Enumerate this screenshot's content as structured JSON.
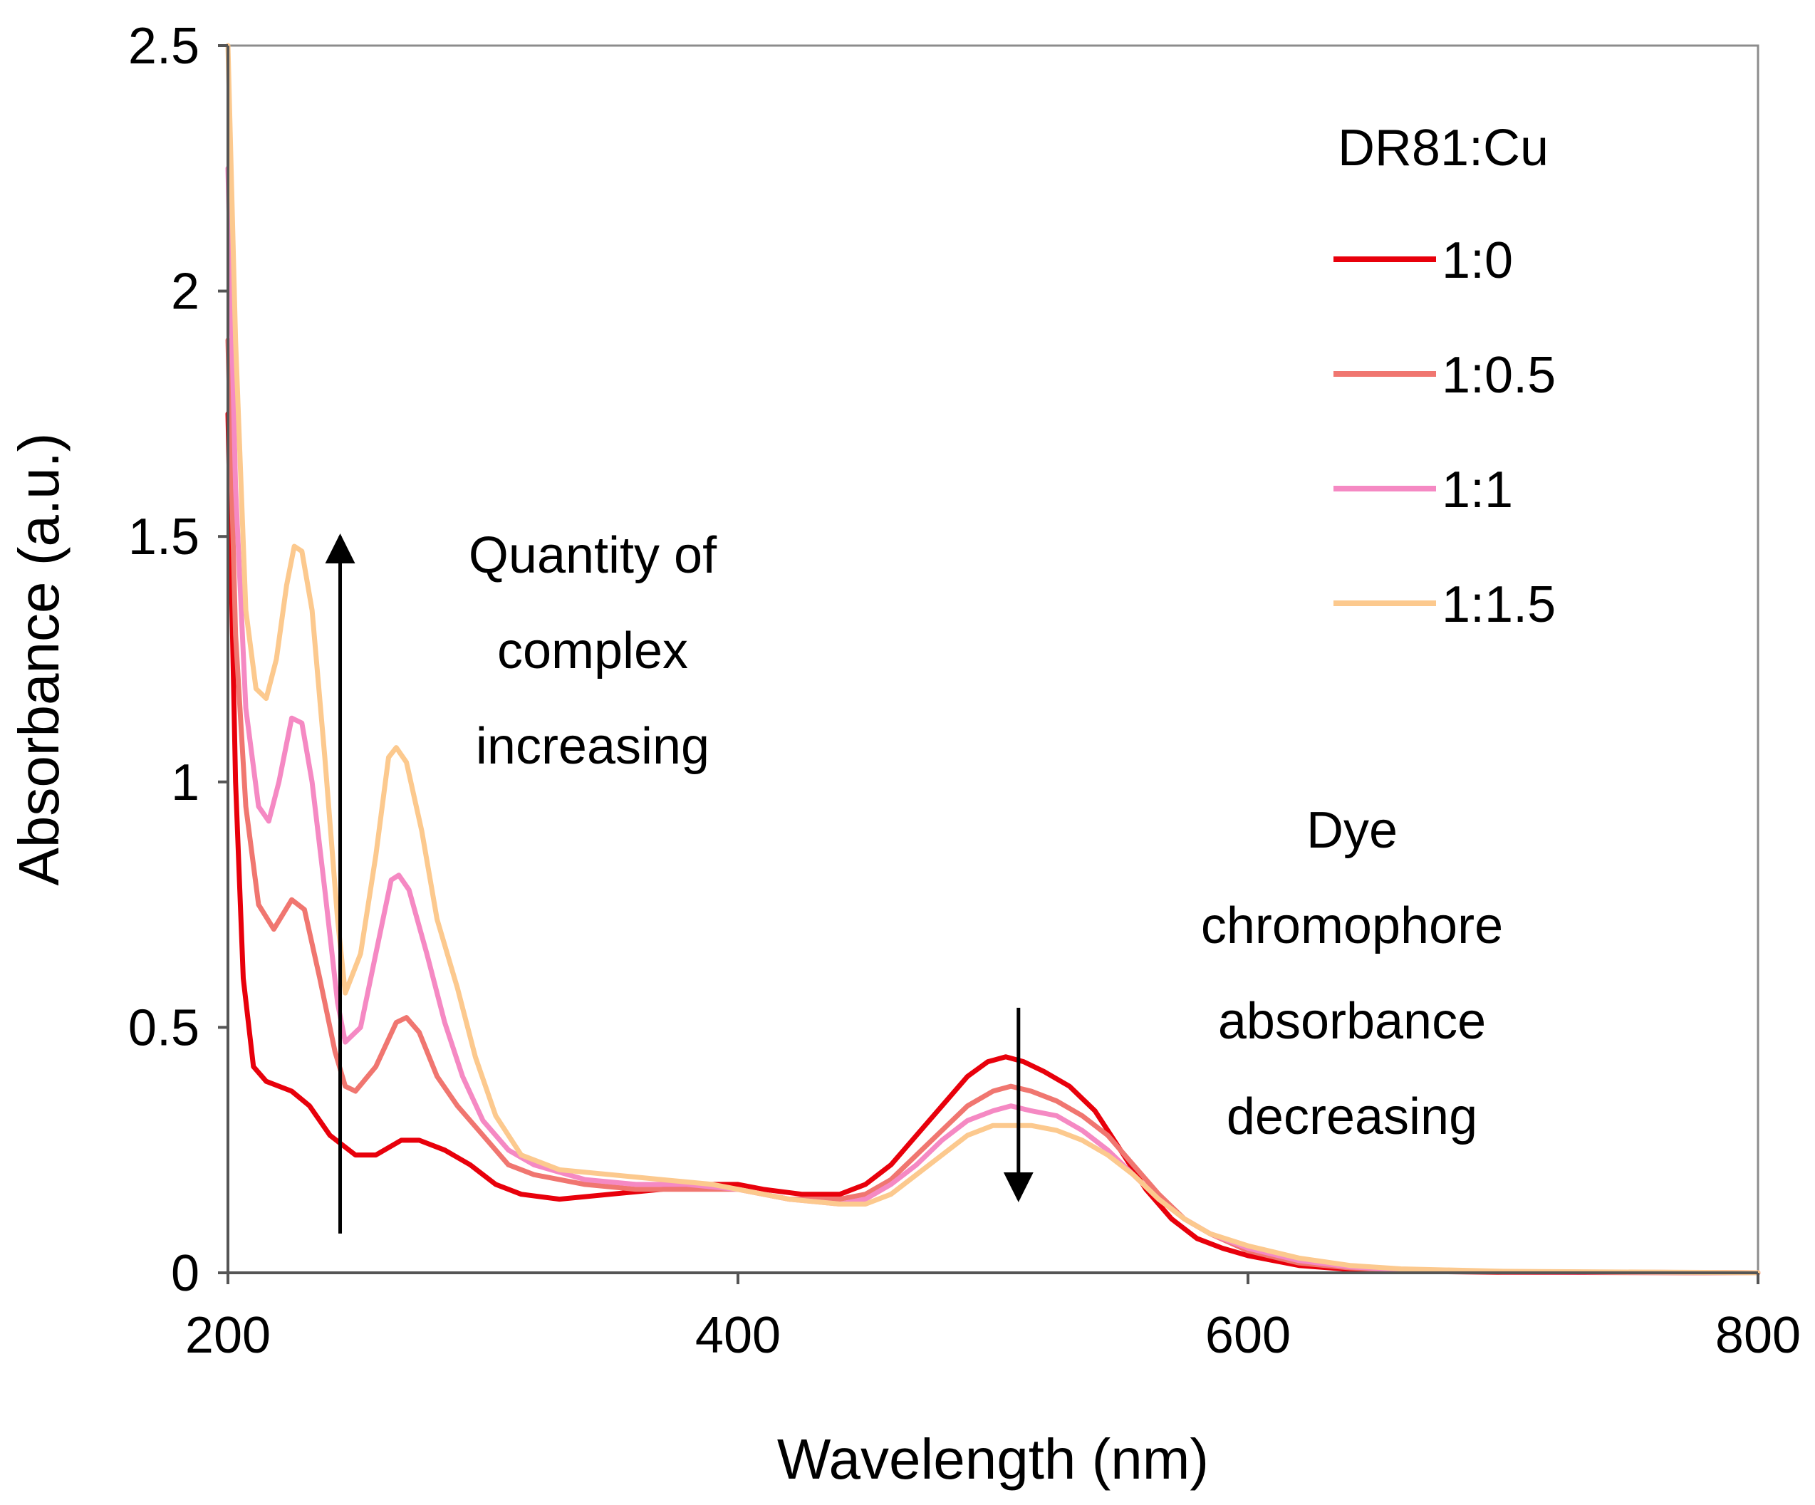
{
  "chart_data": {
    "type": "line",
    "title": "",
    "xlabel": "Wavelength (nm)",
    "ylabel": "Absorbance (a.u.)",
    "xlim": [
      200,
      800
    ],
    "ylim": [
      0,
      2.5
    ],
    "xticks": [
      "200",
      "400",
      "600",
      "800"
    ],
    "yticks": [
      "0",
      "0.5",
      "1",
      "1.5",
      "2",
      "2.5"
    ],
    "legend_title": "DR81:Cu",
    "legend_position": "top-right",
    "series": [
      {
        "name": "1:0",
        "color": "#e8000b",
        "points": [
          [
            200,
            1.75
          ],
          [
            203,
            1.0
          ],
          [
            206,
            0.6
          ],
          [
            210,
            0.42
          ],
          [
            215,
            0.39
          ],
          [
            225,
            0.37
          ],
          [
            232,
            0.34
          ],
          [
            240,
            0.28
          ],
          [
            250,
            0.24
          ],
          [
            258,
            0.24
          ],
          [
            268,
            0.27
          ],
          [
            275,
            0.27
          ],
          [
            285,
            0.25
          ],
          [
            295,
            0.22
          ],
          [
            305,
            0.18
          ],
          [
            315,
            0.16
          ],
          [
            330,
            0.15
          ],
          [
            350,
            0.16
          ],
          [
            370,
            0.17
          ],
          [
            390,
            0.18
          ],
          [
            400,
            0.18
          ],
          [
            410,
            0.17
          ],
          [
            425,
            0.16
          ],
          [
            440,
            0.16
          ],
          [
            450,
            0.18
          ],
          [
            460,
            0.22
          ],
          [
            470,
            0.28
          ],
          [
            480,
            0.34
          ],
          [
            490,
            0.4
          ],
          [
            498,
            0.43
          ],
          [
            505,
            0.44
          ],
          [
            512,
            0.43
          ],
          [
            520,
            0.41
          ],
          [
            530,
            0.38
          ],
          [
            540,
            0.33
          ],
          [
            550,
            0.25
          ],
          [
            560,
            0.17
          ],
          [
            570,
            0.11
          ],
          [
            580,
            0.07
          ],
          [
            590,
            0.05
          ],
          [
            600,
            0.035
          ],
          [
            620,
            0.015
          ],
          [
            640,
            0.007
          ],
          [
            660,
            0.003
          ],
          [
            700,
            0.001
          ],
          [
            800,
            0.0
          ]
        ]
      },
      {
        "name": "1:0.5",
        "color": "#f07670",
        "points": [
          [
            200,
            1.9
          ],
          [
            203,
            1.3
          ],
          [
            207,
            0.95
          ],
          [
            212,
            0.75
          ],
          [
            218,
            0.7
          ],
          [
            225,
            0.76
          ],
          [
            230,
            0.74
          ],
          [
            236,
            0.6
          ],
          [
            242,
            0.45
          ],
          [
            246,
            0.38
          ],
          [
            250,
            0.37
          ],
          [
            258,
            0.42
          ],
          [
            266,
            0.51
          ],
          [
            270,
            0.52
          ],
          [
            275,
            0.49
          ],
          [
            282,
            0.4
          ],
          [
            290,
            0.34
          ],
          [
            300,
            0.28
          ],
          [
            310,
            0.22
          ],
          [
            320,
            0.2
          ],
          [
            340,
            0.18
          ],
          [
            360,
            0.17
          ],
          [
            380,
            0.17
          ],
          [
            400,
            0.17
          ],
          [
            420,
            0.15
          ],
          [
            440,
            0.15
          ],
          [
            450,
            0.16
          ],
          [
            460,
            0.19
          ],
          [
            470,
            0.24
          ],
          [
            480,
            0.29
          ],
          [
            490,
            0.34
          ],
          [
            500,
            0.37
          ],
          [
            507,
            0.38
          ],
          [
            515,
            0.37
          ],
          [
            525,
            0.35
          ],
          [
            535,
            0.32
          ],
          [
            545,
            0.28
          ],
          [
            555,
            0.22
          ],
          [
            565,
            0.16
          ],
          [
            575,
            0.11
          ],
          [
            585,
            0.08
          ],
          [
            600,
            0.045
          ],
          [
            620,
            0.02
          ],
          [
            640,
            0.01
          ],
          [
            660,
            0.005
          ],
          [
            700,
            0.002
          ],
          [
            800,
            0.0
          ]
        ]
      },
      {
        "name": "1:1",
        "color": "#f589c3",
        "points": [
          [
            200,
            2.25
          ],
          [
            203,
            1.6
          ],
          [
            207,
            1.15
          ],
          [
            212,
            0.95
          ],
          [
            216,
            0.92
          ],
          [
            220,
            1.0
          ],
          [
            225,
            1.13
          ],
          [
            229,
            1.12
          ],
          [
            233,
            1.0
          ],
          [
            238,
            0.78
          ],
          [
            243,
            0.55
          ],
          [
            246,
            0.47
          ],
          [
            252,
            0.5
          ],
          [
            258,
            0.65
          ],
          [
            264,
            0.8
          ],
          [
            267,
            0.81
          ],
          [
            271,
            0.78
          ],
          [
            278,
            0.65
          ],
          [
            285,
            0.51
          ],
          [
            292,
            0.4
          ],
          [
            300,
            0.31
          ],
          [
            310,
            0.25
          ],
          [
            320,
            0.22
          ],
          [
            340,
            0.19
          ],
          [
            360,
            0.18
          ],
          [
            380,
            0.18
          ],
          [
            400,
            0.17
          ],
          [
            420,
            0.15
          ],
          [
            440,
            0.14
          ],
          [
            450,
            0.15
          ],
          [
            460,
            0.18
          ],
          [
            470,
            0.22
          ],
          [
            480,
            0.27
          ],
          [
            490,
            0.31
          ],
          [
            500,
            0.33
          ],
          [
            507,
            0.34
          ],
          [
            515,
            0.33
          ],
          [
            525,
            0.32
          ],
          [
            535,
            0.29
          ],
          [
            545,
            0.25
          ],
          [
            555,
            0.2
          ],
          [
            565,
            0.15
          ],
          [
            575,
            0.11
          ],
          [
            585,
            0.08
          ],
          [
            600,
            0.05
          ],
          [
            620,
            0.025
          ],
          [
            640,
            0.012
          ],
          [
            660,
            0.006
          ],
          [
            700,
            0.002
          ],
          [
            800,
            0.0
          ]
        ]
      },
      {
        "name": "1:1.5",
        "color": "#fcc98e",
        "points": [
          [
            200,
            2.5
          ],
          [
            203,
            1.9
          ],
          [
            207,
            1.35
          ],
          [
            211,
            1.19
          ],
          [
            215,
            1.17
          ],
          [
            219,
            1.25
          ],
          [
            223,
            1.4
          ],
          [
            226,
            1.48
          ],
          [
            229,
            1.47
          ],
          [
            233,
            1.35
          ],
          [
            238,
            1.05
          ],
          [
            243,
            0.72
          ],
          [
            246,
            0.57
          ],
          [
            252,
            0.65
          ],
          [
            258,
            0.85
          ],
          [
            263,
            1.05
          ],
          [
            266,
            1.07
          ],
          [
            270,
            1.04
          ],
          [
            276,
            0.9
          ],
          [
            282,
            0.72
          ],
          [
            290,
            0.58
          ],
          [
            297,
            0.44
          ],
          [
            305,
            0.32
          ],
          [
            315,
            0.24
          ],
          [
            330,
            0.21
          ],
          [
            350,
            0.2
          ],
          [
            370,
            0.19
          ],
          [
            390,
            0.18
          ],
          [
            400,
            0.17
          ],
          [
            420,
            0.15
          ],
          [
            440,
            0.14
          ],
          [
            450,
            0.14
          ],
          [
            460,
            0.16
          ],
          [
            470,
            0.2
          ],
          [
            480,
            0.24
          ],
          [
            490,
            0.28
          ],
          [
            500,
            0.3
          ],
          [
            507,
            0.3
          ],
          [
            515,
            0.3
          ],
          [
            525,
            0.29
          ],
          [
            535,
            0.27
          ],
          [
            545,
            0.24
          ],
          [
            555,
            0.2
          ],
          [
            565,
            0.15
          ],
          [
            575,
            0.11
          ],
          [
            585,
            0.08
          ],
          [
            600,
            0.055
          ],
          [
            620,
            0.03
          ],
          [
            640,
            0.015
          ],
          [
            660,
            0.008
          ],
          [
            700,
            0.003
          ],
          [
            800,
            0.0
          ]
        ]
      }
    ],
    "annotations": [
      {
        "lines": [
          "Quantity of",
          "complex",
          "increasing"
        ],
        "arrow": "up",
        "arrow_x": 244,
        "arrow_from": 0.08,
        "arrow_to": 1.5
      },
      {
        "lines": [
          "Dye",
          "chromophore",
          "absorbance",
          "decreasing"
        ],
        "arrow": "down",
        "arrow_x": 510,
        "arrow_from": 0.54,
        "arrow_to": 0.15
      }
    ]
  }
}
